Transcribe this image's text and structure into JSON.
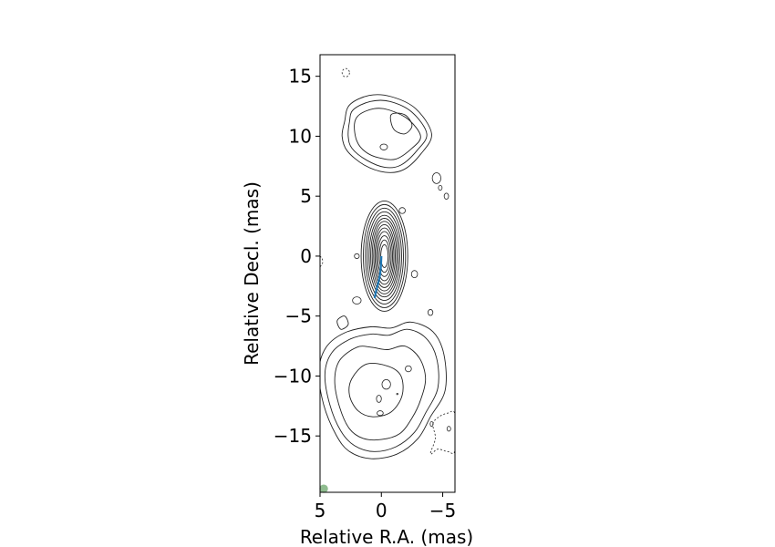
{
  "chart_data": {
    "type": "contour",
    "xlabel": "Relative R.A. (mas)",
    "ylabel": "Relative Decl. (mas)",
    "xlim": [
      5,
      -6
    ],
    "ylim": [
      -19.7,
      16.8
    ],
    "x_ticks": [
      5,
      0,
      -5
    ],
    "x_tick_labels": [
      "5",
      "0",
      "−5"
    ],
    "y_ticks": [
      15,
      10,
      5,
      0,
      -5,
      -10,
      -15
    ],
    "y_tick_labels": [
      "15",
      "10",
      "5",
      "0",
      "−5",
      "−10",
      "−15"
    ],
    "grid": false,
    "contour_color": "#222222",
    "negative_contour_style": "dashed",
    "features": {
      "core": {
        "center": [
          -0.25,
          0.0
        ],
        "levels": [
          {
            "rx": 1.9,
            "ry": 4.6
          },
          {
            "rx": 1.72,
            "ry": 4.3
          },
          {
            "rx": 1.55,
            "ry": 4.0
          },
          {
            "rx": 1.4,
            "ry": 3.7
          },
          {
            "rx": 1.25,
            "ry": 3.4
          },
          {
            "rx": 1.12,
            "ry": 3.15
          },
          {
            "rx": 1.0,
            "ry": 2.9
          },
          {
            "rx": 0.88,
            "ry": 2.62
          },
          {
            "rx": 0.77,
            "ry": 2.35
          },
          {
            "rx": 0.66,
            "ry": 2.05
          },
          {
            "rx": 0.55,
            "ry": 1.7
          },
          {
            "rx": 0.42,
            "ry": 1.35
          },
          {
            "rx": 0.3,
            "ry": 0.95
          }
        ]
      },
      "north_lobe": {
        "levels": [
          [
            [
              3.0,
              11.2
            ],
            [
              2.6,
              12.6
            ],
            [
              1.0,
              13.4
            ],
            [
              -0.8,
              13.3
            ],
            [
              -2.8,
              12.3
            ],
            [
              -4.1,
              10.2
            ],
            [
              -3.2,
              8.5
            ],
            [
              -1.8,
              7.2
            ],
            [
              -0.3,
              7.0
            ],
            [
              1.4,
              7.6
            ],
            [
              2.8,
              8.8
            ],
            [
              3.2,
              10.0
            ]
          ],
          [
            [
              2.6,
              11.2
            ],
            [
              2.3,
              12.2
            ],
            [
              0.9,
              12.9
            ],
            [
              -0.7,
              12.9
            ],
            [
              -2.5,
              12.0
            ],
            [
              -3.7,
              10.2
            ],
            [
              -2.9,
              8.8
            ],
            [
              -1.6,
              7.6
            ],
            [
              -0.3,
              7.4
            ],
            [
              1.2,
              8.0
            ],
            [
              2.4,
              9.0
            ],
            [
              2.7,
              10.0
            ]
          ],
          [
            [
              2.2,
              11.0
            ],
            [
              1.8,
              11.8
            ],
            [
              0.6,
              12.3
            ],
            [
              -0.6,
              12.2
            ],
            [
              -2.2,
              11.4
            ],
            [
              -3.2,
              10.0
            ],
            [
              -2.5,
              9.0
            ],
            [
              -1.2,
              8.1
            ],
            [
              0.2,
              8.2
            ],
            [
              1.3,
              8.7
            ],
            [
              2.0,
              9.6
            ]
          ],
          [
            [
              -0.8,
              11.8
            ],
            [
              -1.9,
              11.8
            ],
            [
              -2.5,
              10.9
            ],
            [
              -1.9,
              10.2
            ],
            [
              -1.0,
              10.6
            ]
          ]
        ],
        "small": [
          {
            "x": -0.2,
            "y": 9.1,
            "rx": 0.3,
            "ry": 0.25,
            "dashed": false
          },
          {
            "x": 2.9,
            "y": 15.3,
            "rx": 0.3,
            "ry": 0.35,
            "dashed": true
          },
          {
            "x": -4.5,
            "y": 6.5,
            "rx": 0.35,
            "ry": 0.45,
            "dashed": false
          },
          {
            "x": -4.8,
            "y": 5.7,
            "rx": 0.15,
            "ry": 0.2,
            "dashed": false
          },
          {
            "x": -5.3,
            "y": 5.0,
            "rx": 0.18,
            "ry": 0.25,
            "dashed": false
          },
          {
            "x": -1.7,
            "y": 3.8,
            "rx": 0.25,
            "ry": 0.25,
            "dashed": false
          }
        ]
      },
      "south_lobe": {
        "levels": [
          [
            [
              3.0,
              -6.4
            ],
            [
              4.5,
              -7.6
            ],
            [
              5.1,
              -9.6
            ],
            [
              4.7,
              -12.4
            ],
            [
              3.7,
              -14.9
            ],
            [
              2.6,
              -16.3
            ],
            [
              0.8,
              -16.9
            ],
            [
              -1.3,
              -16.5
            ],
            [
              -3.0,
              -15.2
            ],
            [
              -4.0,
              -13.4
            ],
            [
              -5.2,
              -11.2
            ],
            [
              -5.1,
              -8.2
            ],
            [
              -4.2,
              -6.3
            ],
            [
              -2.4,
              -5.5
            ],
            [
              -0.8,
              -6.0
            ],
            [
              0.9,
              -5.9
            ]
          ],
          [
            [
              2.5,
              -6.9
            ],
            [
              4.0,
              -8.0
            ],
            [
              4.6,
              -9.8
            ],
            [
              4.2,
              -12.4
            ],
            [
              3.3,
              -14.6
            ],
            [
              2.2,
              -15.8
            ],
            [
              0.6,
              -16.3
            ],
            [
              -1.2,
              -15.9
            ],
            [
              -2.7,
              -14.7
            ],
            [
              -3.6,
              -13.1
            ],
            [
              -4.6,
              -11.0
            ],
            [
              -4.5,
              -8.5
            ],
            [
              -3.6,
              -6.8
            ],
            [
              -2.1,
              -6.1
            ],
            [
              -0.6,
              -6.6
            ],
            [
              0.8,
              -6.5
            ]
          ],
          [
            [
              2.0,
              -7.6
            ],
            [
              3.4,
              -8.7
            ],
            [
              3.8,
              -10.4
            ],
            [
              3.4,
              -12.6
            ],
            [
              2.6,
              -14.4
            ],
            [
              1.5,
              -15.2
            ],
            [
              0.0,
              -15.3
            ],
            [
              -1.5,
              -14.8
            ],
            [
              -2.5,
              -13.5
            ],
            [
              -3.2,
              -12.0
            ],
            [
              -3.6,
              -10.2
            ],
            [
              -3.1,
              -8.5
            ],
            [
              -1.9,
              -7.5
            ],
            [
              -0.5,
              -7.8
            ],
            [
              0.8,
              -7.6
            ]
          ],
          [
            [
              1.2,
              -9.0
            ],
            [
              2.4,
              -10.2
            ],
            [
              2.6,
              -11.6
            ],
            [
              1.9,
              -12.9
            ],
            [
              0.7,
              -13.4
            ],
            [
              -0.8,
              -13.0
            ],
            [
              -1.7,
              -11.6
            ],
            [
              -1.6,
              -10.0
            ],
            [
              -0.6,
              -9.2
            ]
          ],
          [
            [
              3.0,
              -5.0
            ],
            [
              3.6,
              -5.4
            ],
            [
              3.3,
              -6.1
            ],
            [
              2.7,
              -5.7
            ]
          ]
        ],
        "small": [
          {
            "x": -0.4,
            "y": -10.7,
            "rx": 0.35,
            "ry": 0.4,
            "dashed": false
          },
          {
            "x": -2.2,
            "y": -9.4,
            "rx": 0.25,
            "ry": 0.25,
            "dashed": false
          },
          {
            "x": 0.2,
            "y": -11.9,
            "rx": 0.2,
            "ry": 0.3,
            "dashed": false
          },
          {
            "x": 0.1,
            "y": -13.1,
            "rx": 0.25,
            "ry": 0.2,
            "dashed": false
          },
          {
            "x": -1.3,
            "y": -11.5,
            "rx": 0.06,
            "ry": 0.06,
            "dashed": false
          },
          {
            "x": 2.0,
            "y": 0.0,
            "rx": 0.2,
            "ry": 0.2,
            "dashed": false
          },
          {
            "x": 2.0,
            "y": -3.7,
            "rx": 0.35,
            "ry": 0.3,
            "dashed": false
          },
          {
            "x": -2.7,
            "y": -1.5,
            "rx": 0.25,
            "ry": 0.3,
            "dashed": false
          },
          {
            "x": -4.0,
            "y": -4.7,
            "rx": 0.2,
            "ry": 0.25,
            "dashed": false
          },
          {
            "x": -4.1,
            "y": -14.0,
            "rx": 0.12,
            "ry": 0.2,
            "dashed": false
          },
          {
            "x": -5.5,
            "y": -14.4,
            "rx": 0.15,
            "ry": 0.2,
            "dashed": false
          }
        ]
      },
      "negative": [
        [
          [
            -4.2,
            -14.0
          ],
          [
            -4.7,
            -13.4
          ],
          [
            -5.4,
            -13.1
          ],
          [
            -6.0,
            -13.2
          ],
          [
            -6.0,
            -16.2
          ],
          [
            -5.4,
            -16.3
          ],
          [
            -4.6,
            -16.1
          ],
          [
            -4.0,
            -16.5
          ],
          [
            -4.4,
            -15.2
          ]
        ],
        [
          [
            4.9,
            -0.1
          ],
          [
            5.4,
            0.1
          ],
          [
            5.6,
            -0.5
          ],
          [
            5.2,
            -1.0
          ],
          [
            4.8,
            -0.6
          ]
        ]
      ]
    },
    "jet_path": {
      "color": "#1f77b4",
      "x": [
        0.0,
        0.02,
        0.05,
        0.1,
        0.2,
        0.32,
        0.45,
        0.55
      ],
      "y": [
        0.0,
        -0.5,
        -1.0,
        -1.5,
        -2.0,
        -2.5,
        -3.0,
        -3.5
      ]
    },
    "beam": {
      "x": 4.7,
      "y": -19.4,
      "r": 0.35,
      "color": "#8fbc8f"
    }
  }
}
